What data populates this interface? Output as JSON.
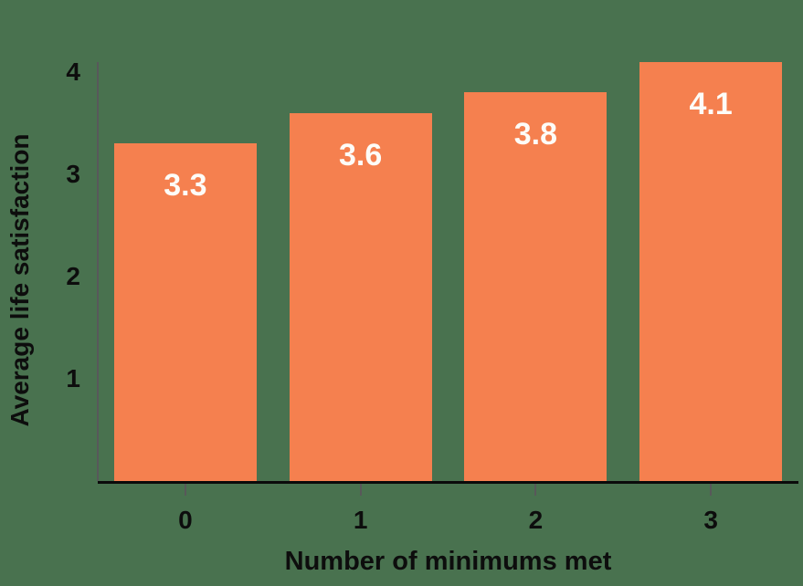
{
  "chart_data": {
    "type": "bar",
    "title": "",
    "categories": [
      "0",
      "1",
      "2",
      "3"
    ],
    "values": [
      3.3,
      3.6,
      3.8,
      4.1
    ],
    "bar_labels": [
      "3.3",
      "3.6",
      "3.8",
      "4.1"
    ],
    "xlabel": "Number of minimums met",
    "ylabel": "Average life satisfaction",
    "yticks": [
      1,
      2,
      3,
      4
    ],
    "ylim": [
      0,
      4.2
    ],
    "grid": false,
    "legend_position": "none",
    "colors": {
      "background": "#49724F",
      "bar": "#F5804F",
      "bar_label": "#FDFCF8",
      "axis_text": "#0D0D0D",
      "y_axis_line": "#58585A",
      "x_axis_line": "#0B0B0B",
      "tick_mark": "#58585A"
    }
  }
}
